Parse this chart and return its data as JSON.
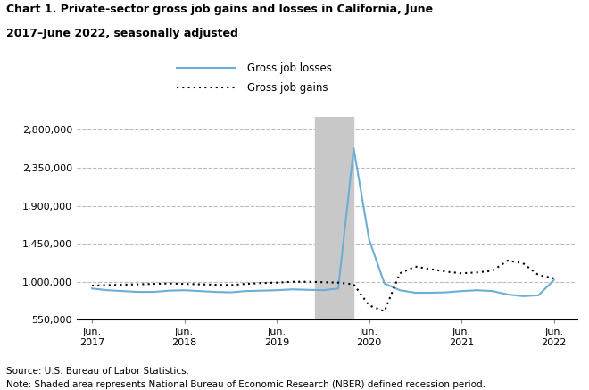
{
  "title_line1": "Chart 1. Private-sector gross job gains and losses in California, June",
  "title_line2": "2017–June 2022, seasonally adjusted",
  "source": "Source: U.S. Bureau of Labor Statistics.",
  "note": "Note: Shaded area represents National Bureau of Economic Research (NBER) defined recession period.",
  "legend_losses": "Gross job losses",
  "legend_gains": "Gross job gains",
  "recession_start": 2019.833,
  "recession_end": 2020.25,
  "ylim": [
    550000,
    2950000
  ],
  "yticks": [
    550000,
    1000000,
    1450000,
    1900000,
    2350000,
    2800000
  ],
  "ytick_labels": [
    "550,000",
    "1,000,000",
    "1,450,000",
    "1,900,000",
    "2,350,000",
    "2,800,000"
  ],
  "xtick_positions": [
    2017.417,
    2018.417,
    2019.417,
    2020.417,
    2021.417,
    2022.417
  ],
  "xtick_labels": [
    "Jun.\n2017",
    "Jun.\n2018",
    "Jun.\n2019",
    "Jun.\n2020",
    "Jun.\n2021",
    "Jun.\n2022"
  ],
  "losses_color": "#6baed6",
  "gains_color": "#000000",
  "grid_color": "#bbbbbb",
  "shading_color": "#c8c8c8",
  "xlim_left": 2017.25,
  "xlim_right": 2022.67,
  "losses_x": [
    2017.417,
    2017.583,
    2017.75,
    2017.917,
    2018.083,
    2018.25,
    2018.417,
    2018.583,
    2018.75,
    2018.917,
    2019.083,
    2019.25,
    2019.417,
    2019.583,
    2019.75,
    2019.917,
    2020.083,
    2020.25,
    2020.417,
    2020.583,
    2020.75,
    2020.917,
    2021.083,
    2021.25,
    2021.417,
    2021.583,
    2021.75,
    2021.917,
    2022.083,
    2022.25,
    2022.417
  ],
  "losses_y": [
    920000,
    900000,
    890000,
    880000,
    880000,
    895000,
    900000,
    890000,
    880000,
    875000,
    890000,
    895000,
    900000,
    910000,
    905000,
    900000,
    920000,
    2580000,
    1500000,
    980000,
    900000,
    870000,
    870000,
    875000,
    890000,
    900000,
    890000,
    850000,
    830000,
    840000,
    1020000
  ],
  "gains_x": [
    2017.417,
    2017.583,
    2017.75,
    2017.917,
    2018.083,
    2018.25,
    2018.417,
    2018.583,
    2018.75,
    2018.917,
    2019.083,
    2019.25,
    2019.417,
    2019.583,
    2019.75,
    2019.917,
    2020.083,
    2020.25,
    2020.417,
    2020.583,
    2020.75,
    2020.917,
    2021.083,
    2021.25,
    2021.417,
    2021.583,
    2021.75,
    2021.917,
    2022.083,
    2022.25,
    2022.417
  ],
  "gains_y": [
    955000,
    960000,
    965000,
    970000,
    975000,
    980000,
    975000,
    970000,
    965000,
    960000,
    975000,
    985000,
    990000,
    1000000,
    1000000,
    995000,
    990000,
    970000,
    720000,
    650000,
    1100000,
    1180000,
    1150000,
    1120000,
    1100000,
    1110000,
    1130000,
    1250000,
    1220000,
    1080000,
    1040000
  ]
}
